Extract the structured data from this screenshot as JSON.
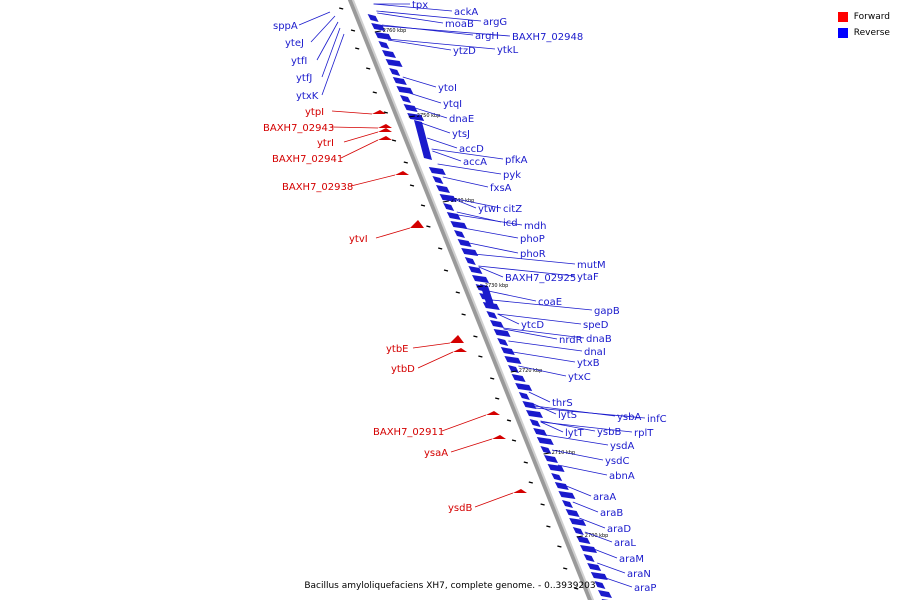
{
  "title": "Bacillus amyloliquefaciens XH7, complete genome. - 0..3939203",
  "legend": [
    {
      "label": "Forward",
      "color": "#ff0000"
    },
    {
      "label": "Reverse",
      "color": "#0000ff"
    }
  ],
  "colors": {
    "forward": "#d40000",
    "reverse": "#1a1acc",
    "backbone": "#9a9a9a"
  },
  "ticks": [
    "2760 kbp",
    "2750 kbp",
    "2740 kbp",
    "2730 kbp",
    "2720 kbp",
    "2710 kbp",
    "2700 kbp"
  ],
  "forward_genes": [
    "ytpI",
    "BAXH7_02943",
    "ytrI",
    "BAXH7_02941",
    "BAXH7_02938",
    "ytvI",
    "ytbE",
    "ytbD",
    "BAXH7_02911",
    "ysaA",
    "ysdB"
  ],
  "reverse_left_genes": [
    "sppA",
    "yteJ",
    "ytfI",
    "ytfJ",
    "ytxK"
  ],
  "reverse_genes": [
    "tpx",
    "ackA",
    "moaB",
    "argG",
    "argH",
    "BAXH7_02948",
    "ytzD",
    "ytkL",
    "ytoI",
    "ytqI",
    "dnaE",
    "ytsJ",
    "accD",
    "accA",
    "pfkA",
    "pyk",
    "fxsA",
    "ytwI",
    "citZ",
    "icd",
    "mdh",
    "phoP",
    "phoR",
    "mutM",
    "BAXH7_02925",
    "ytaF",
    "coaE",
    "gapB",
    "ytcD",
    "speD",
    "nrdR",
    "dnaB",
    "dnaI",
    "ytxB",
    "ytxC",
    "thrS",
    "lytS",
    "ysbA",
    "infC",
    "lytT",
    "ysbB",
    "rplT",
    "ysdA",
    "ysdC",
    "abnA",
    "araA",
    "araB",
    "araD",
    "araL",
    "araM",
    "araN",
    "araP"
  ]
}
